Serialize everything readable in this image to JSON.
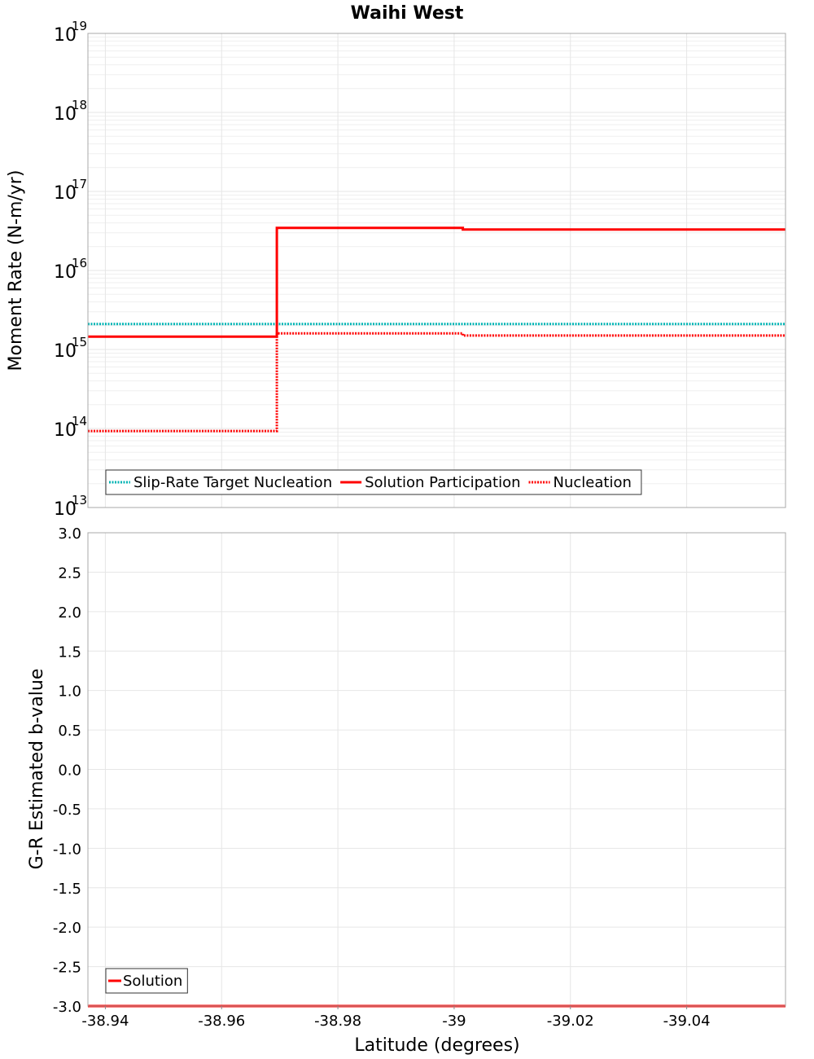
{
  "chart_data": {
    "title": "Waihi West",
    "xlabel": "Latitude (degrees)",
    "xlim": [
      -38.937,
      -39.057
    ],
    "x_ticks": [
      "-38.94",
      "-38.96",
      "-38.98",
      "-39",
      "-39.02",
      "-39.04"
    ],
    "x_tick_values": [
      -38.94,
      -38.96,
      -38.98,
      -39.0,
      -39.02,
      -39.04
    ],
    "panels": [
      {
        "type": "line",
        "scale": "log",
        "ylabel": "Moment Rate (N-m/yr)",
        "ylim_exp": [
          13,
          19
        ],
        "y_tick_base": "10",
        "y_tick_exponents": [
          "13",
          "14",
          "15",
          "16",
          "17",
          "18",
          "19"
        ],
        "legend": {
          "position": "bottom-left",
          "entries": [
            {
              "label": "Slip-Rate Target Nucleation",
              "color": "#00b4b4",
              "style": "dotted"
            },
            {
              "label": "Solution Participation",
              "color": "#ff0000",
              "style": "solid"
            },
            {
              "label": "Nucleation",
              "color": "#ff0000",
              "style": "dotted"
            }
          ]
        },
        "series": [
          {
            "name": "Slip-Rate Target Nucleation",
            "color": "#00b4b4",
            "style": "dotted",
            "x": [
              -38.937,
              -38.9695,
              -38.9695,
              -39.0015,
              -39.0015,
              -39.057
            ],
            "y": [
              2100000000000000.0,
              2100000000000000.0,
              2100000000000000.0,
              2100000000000000.0,
              2100000000000000.0,
              2100000000000000.0
            ]
          },
          {
            "name": "Solution Participation",
            "color": "#ff0000",
            "style": "solid",
            "x": [
              -38.937,
              -38.9695,
              -38.9695,
              -39.0015,
              -39.0015,
              -39.057
            ],
            "y": [
              1450000000000000.0,
              1450000000000000.0,
              3.45e+16,
              3.45e+16,
              3.3e+16,
              3.3e+16
            ]
          },
          {
            "name": "Nucleation",
            "color": "#ff0000",
            "style": "dotted",
            "x": [
              -38.937,
              -38.9695,
              -38.9695,
              -39.0015,
              -39.0015,
              -39.057
            ],
            "y": [
              93000000000000.0,
              93000000000000.0,
              1600000000000000.0,
              1600000000000000.0,
              1500000000000000.0,
              1500000000000000.0
            ]
          }
        ]
      },
      {
        "type": "line",
        "scale": "linear",
        "ylabel": "G-R Estimated b-value",
        "ylim": [
          -3.0,
          3.0
        ],
        "y_tick_values": [
          3.0,
          2.5,
          2.0,
          1.5,
          1.0,
          0.5,
          0.0,
          -0.5,
          -1.0,
          -1.5,
          -2.0,
          -2.5,
          -3.0
        ],
        "y_ticks": [
          "3.0",
          "2.5",
          "2.0",
          "1.5",
          "1.0",
          "0.5",
          "0.0",
          "-0.5",
          "-1.0",
          "-1.5",
          "-2.0",
          "-2.5",
          "-3.0"
        ],
        "legend": {
          "position": "bottom-left",
          "entries": [
            {
              "label": "Solution",
              "color": "#ff0000",
              "style": "solid"
            }
          ]
        },
        "series": [
          {
            "name": "Solution",
            "color": "#ff0000",
            "style": "solid",
            "x": [
              -38.937,
              -39.057
            ],
            "y": [
              -3.0,
              -3.0
            ]
          }
        ]
      }
    ]
  }
}
